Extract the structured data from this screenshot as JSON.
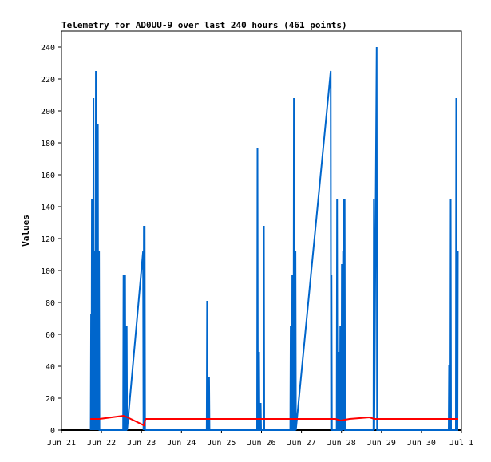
{
  "chart_data": {
    "type": "line",
    "title": "Telemetry for AD0UU-9 over last 240 hours (461 points)",
    "xlabel": "",
    "ylabel": "Values",
    "xlim": [
      0,
      10
    ],
    "ylim": [
      0,
      250
    ],
    "x_ticks": [
      {
        "v": 0,
        "label": "Jun 21"
      },
      {
        "v": 1,
        "label": "Jun 22"
      },
      {
        "v": 2,
        "label": "Jun 23"
      },
      {
        "v": 3,
        "label": "Jun 24"
      },
      {
        "v": 4,
        "label": "Jun 25"
      },
      {
        "v": 5,
        "label": "Jun 26"
      },
      {
        "v": 6,
        "label": "Jun 27"
      },
      {
        "v": 7,
        "label": "Jun 28"
      },
      {
        "v": 8,
        "label": "Jun 29"
      },
      {
        "v": 9,
        "label": "Jun 30"
      },
      {
        "v": 10,
        "label": "Jul 1"
      }
    ],
    "y_ticks": [
      0,
      20,
      40,
      60,
      80,
      100,
      120,
      140,
      160,
      180,
      200,
      220,
      240
    ],
    "grid": false,
    "series": [
      {
        "color": "#0066cc",
        "points": [
          [
            0.73,
            0
          ],
          [
            0.74,
            73
          ],
          [
            0.75,
            0
          ],
          [
            0.76,
            145
          ],
          [
            0.77,
            0
          ],
          [
            0.78,
            73
          ],
          [
            0.79,
            0
          ],
          [
            0.8,
            208
          ],
          [
            0.81,
            0
          ],
          [
            0.84,
            112
          ],
          [
            0.85,
            0
          ],
          [
            0.86,
            225
          ],
          [
            0.87,
            0
          ],
          [
            0.88,
            97
          ],
          [
            0.89,
            0
          ],
          [
            0.91,
            192
          ],
          [
            0.92,
            0
          ],
          [
            0.94,
            112
          ],
          [
            0.95,
            0
          ],
          [
            1.54,
            0
          ],
          [
            1.55,
            97
          ],
          [
            1.56,
            0
          ],
          [
            1.58,
            0
          ],
          [
            1.59,
            97
          ],
          [
            1.6,
            0
          ],
          [
            1.62,
            0
          ],
          [
            1.63,
            65
          ],
          [
            1.64,
            0
          ],
          [
            2.04,
            112
          ],
          [
            2.05,
            0
          ],
          [
            2.06,
            128
          ],
          [
            2.07,
            0
          ],
          [
            2.08,
            128
          ],
          [
            2.09,
            0
          ],
          [
            3.63,
            0
          ],
          [
            3.64,
            81
          ],
          [
            3.65,
            0
          ],
          [
            3.68,
            0
          ],
          [
            3.69,
            33
          ],
          [
            3.7,
            0
          ],
          [
            4.89,
            0
          ],
          [
            4.9,
            177
          ],
          [
            4.91,
            0
          ],
          [
            4.93,
            0
          ],
          [
            4.94,
            49
          ],
          [
            4.95,
            0
          ],
          [
            4.97,
            0
          ],
          [
            4.98,
            17
          ],
          [
            4.99,
            0
          ],
          [
            5.05,
            0
          ],
          [
            5.06,
            128
          ],
          [
            5.07,
            0
          ],
          [
            5.72,
            0
          ],
          [
            5.73,
            65
          ],
          [
            5.74,
            0
          ],
          [
            5.76,
            0
          ],
          [
            5.77,
            97
          ],
          [
            5.78,
            0
          ],
          [
            5.8,
            0
          ],
          [
            5.81,
            208
          ],
          [
            5.82,
            0
          ],
          [
            5.84,
            0
          ],
          [
            5.85,
            112
          ],
          [
            5.86,
            0
          ],
          [
            6.73,
            225
          ],
          [
            6.74,
            0
          ],
          [
            6.75,
            97
          ],
          [
            6.76,
            0
          ],
          [
            6.88,
            0
          ],
          [
            6.89,
            145
          ],
          [
            6.9,
            0
          ],
          [
            6.92,
            0
          ],
          [
            6.93,
            49
          ],
          [
            6.94,
            0
          ],
          [
            6.96,
            0
          ],
          [
            6.97,
            65
          ],
          [
            6.98,
            0
          ],
          [
            7.0,
            0
          ],
          [
            7.01,
            104
          ],
          [
            7.02,
            0
          ],
          [
            7.04,
            112
          ],
          [
            7.05,
            0
          ],
          [
            7.06,
            145
          ],
          [
            7.07,
            0
          ],
          [
            7.08,
            145
          ],
          [
            7.09,
            0
          ],
          [
            7.8,
            0
          ],
          [
            7.81,
            145
          ],
          [
            7.82,
            0
          ],
          [
            7.88,
            240
          ],
          [
            7.89,
            0
          ],
          [
            9.68,
            0
          ],
          [
            9.69,
            41
          ],
          [
            9.7,
            0
          ],
          [
            9.72,
            0
          ],
          [
            9.73,
            145
          ],
          [
            9.74,
            0
          ],
          [
            9.86,
            0
          ],
          [
            9.87,
            208
          ],
          [
            9.88,
            0
          ],
          [
            9.9,
            0
          ],
          [
            9.91,
            112
          ]
        ]
      },
      {
        "color": "#ff0000",
        "points": [
          [
            0.72,
            7
          ],
          [
            0.95,
            7
          ],
          [
            1.55,
            9
          ],
          [
            1.65,
            8
          ],
          [
            2.06,
            3
          ],
          [
            2.1,
            7
          ],
          [
            3.0,
            7
          ],
          [
            4.0,
            7
          ],
          [
            5.0,
            7
          ],
          [
            6.0,
            7
          ],
          [
            6.85,
            7
          ],
          [
            6.98,
            6
          ],
          [
            7.2,
            7
          ],
          [
            7.7,
            8
          ],
          [
            7.82,
            7
          ],
          [
            8.5,
            7
          ],
          [
            9.2,
            7
          ],
          [
            9.92,
            7
          ]
        ]
      }
    ]
  }
}
